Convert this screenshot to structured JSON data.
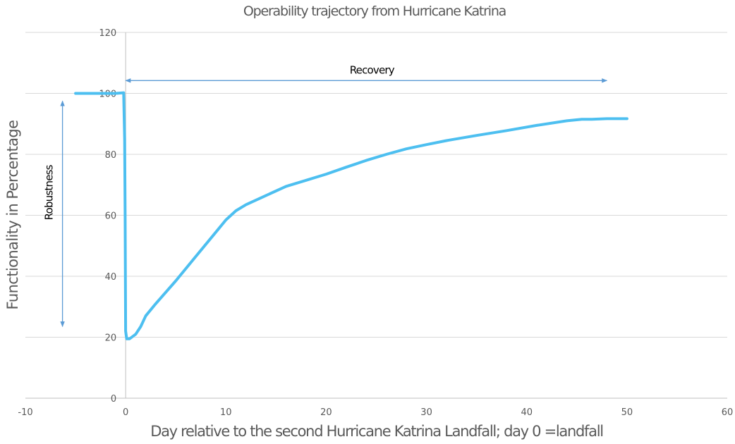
{
  "chart_data": {
    "type": "line",
    "title": "Operability trajectory from Hurricane Katrina",
    "xlabel": "Day relative to the second Hurricane Katrina Landfall; day 0 =landfall",
    "ylabel": "Functionality in Percentage",
    "xlim": [
      -10,
      60
    ],
    "ylim": [
      0,
      120
    ],
    "xticks": [
      -10,
      0,
      10,
      20,
      30,
      40,
      50,
      60
    ],
    "yticks": [
      0,
      20,
      40,
      60,
      80,
      100,
      120
    ],
    "grid": "horizontal",
    "series": [
      {
        "color": "#4dbff0",
        "points": [
          [
            -5,
            100
          ],
          [
            -3,
            100
          ],
          [
            -1,
            100
          ],
          [
            -0.2,
            100.2
          ],
          [
            -0.1,
            85
          ],
          [
            -0.05,
            60
          ],
          [
            0,
            22
          ],
          [
            0.1,
            19.5
          ],
          [
            0.4,
            19.5
          ],
          [
            1,
            21
          ],
          [
            1.5,
            23.5
          ],
          [
            2,
            27
          ],
          [
            3,
            31
          ],
          [
            5,
            38.5
          ],
          [
            7,
            46.5
          ],
          [
            9,
            54.5
          ],
          [
            10,
            58.5
          ],
          [
            11,
            61.5
          ],
          [
            12,
            63.5
          ],
          [
            14,
            66.5
          ],
          [
            16,
            69.5
          ],
          [
            18,
            71.5
          ],
          [
            20,
            73.5
          ],
          [
            22,
            75.8
          ],
          [
            24,
            78
          ],
          [
            26,
            80
          ],
          [
            28,
            81.8
          ],
          [
            30,
            83.2
          ],
          [
            32,
            84.5
          ],
          [
            35,
            86.2
          ],
          [
            38,
            87.8
          ],
          [
            41,
            89.5
          ],
          [
            44,
            91
          ],
          [
            45.5,
            91.5
          ],
          [
            46.5,
            91.5
          ],
          [
            48,
            91.7
          ],
          [
            50,
            91.7
          ]
        ]
      }
    ],
    "annotations": [
      {
        "label": "Recovery",
        "type": "horizontal-arrow",
        "from": [
          0,
          104.2
        ],
        "to": [
          48,
          104.2
        ],
        "color": "#5b9bd5"
      },
      {
        "label": "Robustness",
        "type": "vertical-arrow",
        "from": [
          -6.3,
          97.5
        ],
        "to": [
          -6.3,
          23.5
        ],
        "color": "#5b9bd5"
      }
    ]
  }
}
